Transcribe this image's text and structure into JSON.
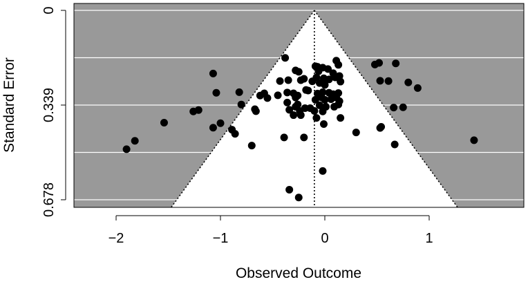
{
  "chart_data": {
    "type": "scatter",
    "title": "",
    "xlabel": "Observed Outcome",
    "ylabel": "Standard Error",
    "xlim": [
      -2.4,
      1.88
    ],
    "ylim": [
      0,
      0.7
    ],
    "y_reversed": true,
    "x_ticks": [
      -2,
      -1,
      0,
      1
    ],
    "x_tick_labels": [
      "−2",
      "−1",
      "0",
      "1"
    ],
    "y_ticks": [
      0,
      0.339,
      0.678
    ],
    "y_tick_labels": [
      "0",
      "0.339",
      "0.678"
    ],
    "y_gridlines": [
      0,
      0.1695,
      0.339,
      0.5085,
      0.678
    ],
    "grid": true,
    "background_color": "#999999",
    "funnel_color": "#ffffff",
    "point_color": "#000000",
    "center_estimate": -0.1,
    "funnel_z": 1.96,
    "points": [
      {
        "x": -1.9,
        "y": 0.497
      },
      {
        "x": -1.82,
        "y": 0.467
      },
      {
        "x": -1.54,
        "y": 0.402
      },
      {
        "x": -1.26,
        "y": 0.362
      },
      {
        "x": -1.21,
        "y": 0.357
      },
      {
        "x": -1.07,
        "y": 0.226
      },
      {
        "x": -1.04,
        "y": 0.295
      },
      {
        "x": -1.07,
        "y": 0.42
      },
      {
        "x": -1.0,
        "y": 0.404
      },
      {
        "x": -0.82,
        "y": 0.293
      },
      {
        "x": -0.8,
        "y": 0.337
      },
      {
        "x": -0.89,
        "y": 0.427
      },
      {
        "x": -0.86,
        "y": 0.442
      },
      {
        "x": -0.7,
        "y": 0.484
      },
      {
        "x": -0.67,
        "y": 0.354
      },
      {
        "x": -0.66,
        "y": 0.361
      },
      {
        "x": -0.62,
        "y": 0.305
      },
      {
        "x": -0.58,
        "y": 0.297
      },
      {
        "x": -0.55,
        "y": 0.314
      },
      {
        "x": -0.45,
        "y": 0.304
      },
      {
        "x": -0.43,
        "y": 0.253
      },
      {
        "x": -0.38,
        "y": 0.17
      },
      {
        "x": -0.35,
        "y": 0.25
      },
      {
        "x": -0.36,
        "y": 0.294
      },
      {
        "x": -0.36,
        "y": 0.33
      },
      {
        "x": -0.34,
        "y": 0.356
      },
      {
        "x": -0.3,
        "y": 0.297
      },
      {
        "x": -0.28,
        "y": 0.215
      },
      {
        "x": -0.25,
        "y": 0.22
      },
      {
        "x": -0.23,
        "y": 0.25
      },
      {
        "x": -0.2,
        "y": 0.245
      },
      {
        "x": -0.18,
        "y": 0.285
      },
      {
        "x": -0.16,
        "y": 0.287
      },
      {
        "x": -0.26,
        "y": 0.305
      },
      {
        "x": -0.28,
        "y": 0.312
      },
      {
        "x": -0.26,
        "y": 0.337
      },
      {
        "x": -0.28,
        "y": 0.345
      },
      {
        "x": -0.24,
        "y": 0.36
      },
      {
        "x": -0.3,
        "y": 0.375
      },
      {
        "x": -0.23,
        "y": 0.375
      },
      {
        "x": -0.19,
        "y": 0.35
      },
      {
        "x": -0.12,
        "y": 0.254
      },
      {
        "x": -0.07,
        "y": 0.202
      },
      {
        "x": -0.09,
        "y": 0.2
      },
      {
        "x": -0.06,
        "y": 0.218
      },
      {
        "x": -0.02,
        "y": 0.205
      },
      {
        "x": 0.03,
        "y": 0.21
      },
      {
        "x": 0.08,
        "y": 0.225
      },
      {
        "x": 0.11,
        "y": 0.18
      },
      {
        "x": 0.13,
        "y": 0.195
      },
      {
        "x": -0.08,
        "y": 0.24
      },
      {
        "x": -0.05,
        "y": 0.26
      },
      {
        "x": -0.01,
        "y": 0.243
      },
      {
        "x": 0.04,
        "y": 0.247
      },
      {
        "x": 0.1,
        "y": 0.24
      },
      {
        "x": 0.14,
        "y": 0.235
      },
      {
        "x": 0.15,
        "y": 0.255
      },
      {
        "x": 0.0,
        "y": 0.267
      },
      {
        "x": -0.07,
        "y": 0.298
      },
      {
        "x": -0.02,
        "y": 0.293
      },
      {
        "x": 0.04,
        "y": 0.295
      },
      {
        "x": 0.08,
        "y": 0.3
      },
      {
        "x": 0.13,
        "y": 0.296
      },
      {
        "x": -0.09,
        "y": 0.32
      },
      {
        "x": -0.03,
        "y": 0.312
      },
      {
        "x": 0.0,
        "y": 0.32
      },
      {
        "x": 0.06,
        "y": 0.318
      },
      {
        "x": 0.11,
        "y": 0.312
      },
      {
        "x": 0.14,
        "y": 0.325
      },
      {
        "x": -0.05,
        "y": 0.34
      },
      {
        "x": 0.01,
        "y": 0.345
      },
      {
        "x": 0.09,
        "y": 0.345
      },
      {
        "x": 0.13,
        "y": 0.337
      },
      {
        "x": -0.14,
        "y": 0.35
      },
      {
        "x": -0.1,
        "y": 0.36
      },
      {
        "x": -0.02,
        "y": 0.362
      },
      {
        "x": -0.08,
        "y": 0.385
      },
      {
        "x": 0.15,
        "y": 0.385
      },
      {
        "x": -0.01,
        "y": 0.407
      },
      {
        "x": 0.3,
        "y": 0.437
      },
      {
        "x": -0.39,
        "y": 0.455
      },
      {
        "x": -0.2,
        "y": 0.455
      },
      {
        "x": 0.48,
        "y": 0.194
      },
      {
        "x": 0.52,
        "y": 0.188
      },
      {
        "x": 0.68,
        "y": 0.19
      },
      {
        "x": 0.53,
        "y": 0.252
      },
      {
        "x": 0.61,
        "y": 0.253
      },
      {
        "x": 0.8,
        "y": 0.258
      },
      {
        "x": 0.89,
        "y": 0.278
      },
      {
        "x": 0.66,
        "y": 0.348
      },
      {
        "x": 0.75,
        "y": 0.347
      },
      {
        "x": 0.54,
        "y": 0.417
      },
      {
        "x": 0.53,
        "y": 0.421
      },
      {
        "x": 0.67,
        "y": 0.48
      },
      {
        "x": 1.43,
        "y": 0.465
      },
      {
        "x": -0.02,
        "y": 0.575
      },
      {
        "x": -0.34,
        "y": 0.642
      },
      {
        "x": -0.25,
        "y": 0.67
      }
    ]
  }
}
